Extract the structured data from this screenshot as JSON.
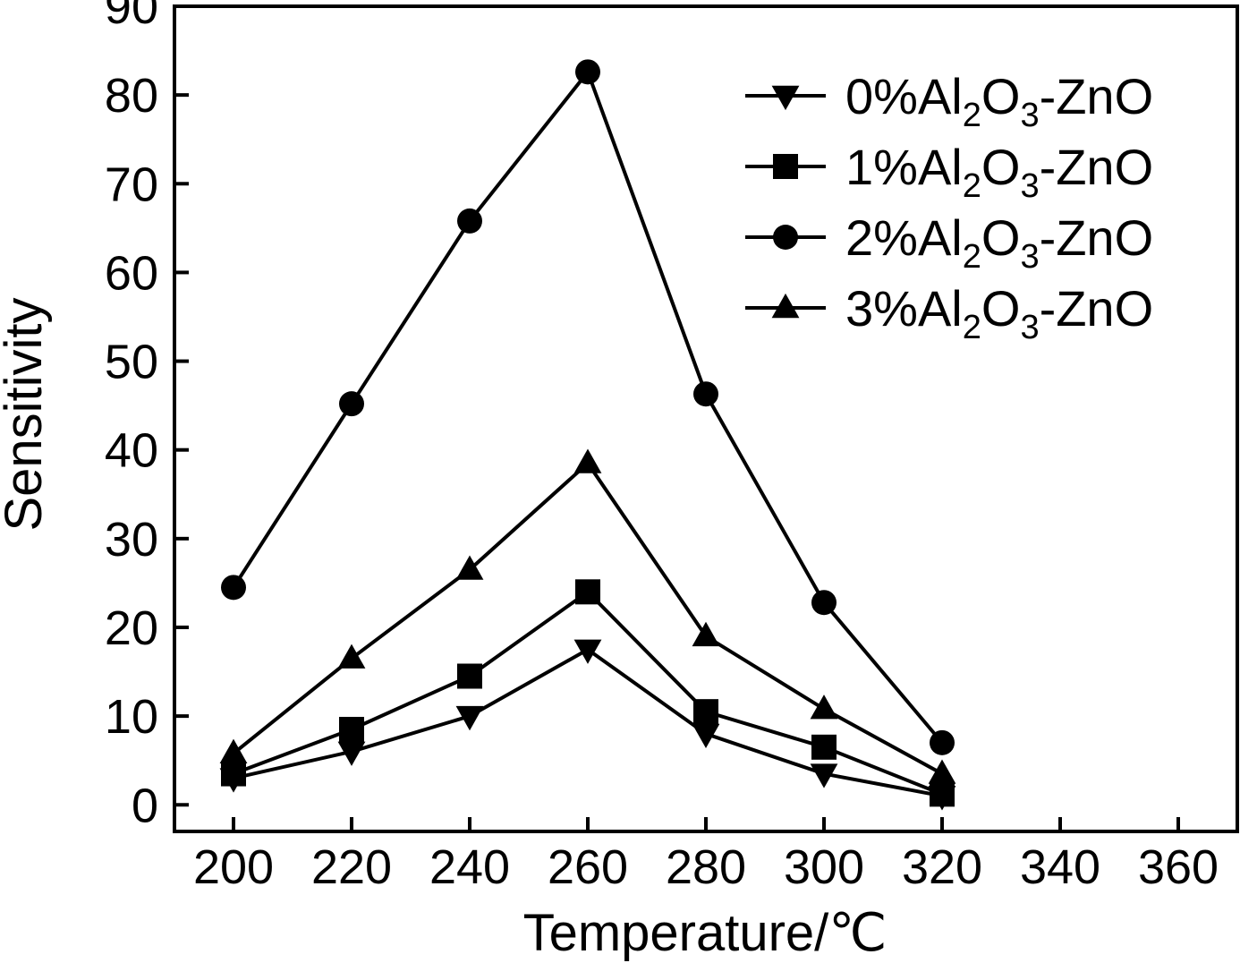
{
  "chart_data": {
    "type": "line",
    "title": "",
    "xlabel": "Temperature/℃",
    "ylabel": "Sensitivity",
    "xlim": [
      190,
      370
    ],
    "ylim": [
      -3,
      90
    ],
    "xticks": [
      200,
      220,
      240,
      260,
      280,
      300,
      320,
      340,
      360
    ],
    "yticks": [
      0,
      10,
      20,
      30,
      40,
      50,
      60,
      70,
      80,
      90
    ],
    "grid": false,
    "legend_position": "top-right",
    "x": [
      200,
      220,
      240,
      260,
      280,
      300,
      320
    ],
    "series": [
      {
        "name": "0%Al2O3-ZnO",
        "label_parts": [
          "0%Al",
          "2",
          "O",
          "3",
          "-ZnO"
        ],
        "marker": "triangle-down",
        "values": [
          3.0,
          6.0,
          10.0,
          17.5,
          8.0,
          3.5,
          1.0
        ]
      },
      {
        "name": "1%Al2O3-ZnO",
        "label_parts": [
          "1%Al",
          "2",
          "O",
          "3",
          "-ZnO"
        ],
        "marker": "square",
        "values": [
          3.5,
          8.5,
          14.5,
          24.0,
          10.5,
          6.5,
          1.2
        ]
      },
      {
        "name": "2%Al2O3-ZnO",
        "label_parts": [
          "2%Al",
          "2",
          "O",
          "3",
          "-ZnO"
        ],
        "marker": "circle",
        "values": [
          24.5,
          45.2,
          65.8,
          82.6,
          46.3,
          22.8,
          7.0
        ]
      },
      {
        "name": "3%Al2O3-ZnO",
        "label_parts": [
          "3%Al",
          "2",
          "O",
          "3",
          "-ZnO"
        ],
        "marker": "triangle-up",
        "values": [
          5.8,
          16.5,
          26.5,
          38.5,
          19.0,
          10.8,
          3.5
        ]
      }
    ],
    "colors": {
      "line": "#000000",
      "marker": "#000000",
      "background": "#ffffff"
    }
  }
}
